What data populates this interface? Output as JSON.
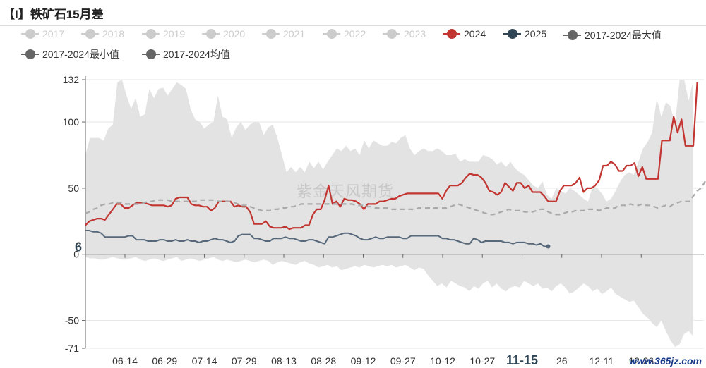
{
  "title": "【I】铁矿石15月差",
  "watermark": "紫金天风期货",
  "corner_mark": "www.365jz.com",
  "chart_data": {
    "type": "line",
    "legend_items": [
      {
        "label": "2017",
        "color": "#cccccc",
        "disabled": true
      },
      {
        "label": "2018",
        "color": "#cccccc",
        "disabled": true
      },
      {
        "label": "2019",
        "color": "#cccccc",
        "disabled": true
      },
      {
        "label": "2020",
        "color": "#cccccc",
        "disabled": true
      },
      {
        "label": "2021",
        "color": "#cccccc",
        "disabled": true
      },
      {
        "label": "2022",
        "color": "#cccccc",
        "disabled": true
      },
      {
        "label": "2023",
        "color": "#cccccc",
        "disabled": true
      },
      {
        "label": "2024",
        "color": "#c23531",
        "disabled": false
      },
      {
        "label": "2025",
        "color": "#2f4554",
        "disabled": false
      },
      {
        "label": "2017-2024最大值",
        "color": "#666666",
        "disabled": false
      },
      {
        "label": "2017-2024最小值",
        "color": "#666666",
        "disabled": false
      },
      {
        "label": "2017-2024均值",
        "color": "#666666",
        "disabled": false
      }
    ],
    "x_ticks": [
      "06-14",
      "06-29",
      "07-14",
      "07-29",
      "08-13",
      "08-28",
      "09-12",
      "09-27",
      "10-12",
      "10-27",
      "11-15",
      "26",
      "12-11",
      "12-26"
    ],
    "highlight_tick": "11-15",
    "y_ticks": [
      132,
      100,
      50,
      0,
      -50,
      -71
    ],
    "ylim": [
      -71,
      132
    ],
    "last_value_label": "6",
    "band_max": [
      75,
      88,
      88,
      88,
      86,
      95,
      98,
      130,
      132,
      120,
      110,
      118,
      104,
      106,
      125,
      118,
      125,
      126,
      120,
      125,
      130,
      128,
      125,
      110,
      102,
      100,
      95,
      98,
      100,
      120,
      104,
      102,
      88,
      96,
      100,
      94,
      98,
      100,
      100,
      90,
      96,
      98,
      88,
      75,
      62,
      66,
      62,
      66,
      62,
      70,
      65,
      70,
      64,
      70,
      75,
      80,
      78,
      82,
      78,
      80,
      75,
      86,
      80,
      86,
      84,
      82,
      82,
      85,
      84,
      88,
      90,
      80,
      75,
      78,
      80,
      78,
      78,
      80,
      78,
      75,
      75,
      76,
      70,
      72,
      70,
      70,
      70,
      75,
      74,
      72,
      68,
      70,
      66,
      70,
      65,
      62,
      60,
      56,
      52,
      50,
      55,
      45,
      42,
      50,
      48,
      46,
      50,
      48,
      45,
      42,
      40,
      52,
      50,
      46,
      40,
      42,
      48,
      55,
      60,
      62,
      60,
      70,
      80,
      85,
      92,
      118,
      104,
      115,
      112,
      98,
      132,
      132,
      116,
      132
    ],
    "band_min": [
      -2,
      -3,
      -3,
      -4,
      -4,
      -3,
      -2,
      -3,
      -4,
      -4,
      -3,
      -2,
      -4,
      -5,
      -4,
      -3,
      -4,
      -5,
      -4,
      -3,
      -2,
      -5,
      -4,
      -3,
      -4,
      -5,
      -4,
      -3,
      -2,
      -4,
      -5,
      -4,
      -5,
      -6,
      -5,
      -4,
      -5,
      -6,
      -5,
      -4,
      -5,
      -8,
      -6,
      -5,
      -6,
      -7,
      -8,
      -6,
      -5,
      -7,
      -8,
      -10,
      -9,
      -8,
      -10,
      -9,
      -12,
      -11,
      -10,
      -9,
      -10,
      -8,
      -9,
      -10,
      -9,
      -8,
      -9,
      -8,
      -10,
      -9,
      -8,
      -10,
      -12,
      -10,
      -11,
      -16,
      -20,
      -24,
      -22,
      -25,
      -20,
      -22,
      -24,
      -25,
      -28,
      -24,
      -26,
      -22,
      -20,
      -25,
      -22,
      -26,
      -28,
      -25,
      -24,
      -25,
      -20,
      -22,
      -24,
      -22,
      -26,
      -25,
      -28,
      -24,
      -22,
      -25,
      -30,
      -28,
      -25,
      -22,
      -24,
      -28,
      -26,
      -30,
      -28,
      -25,
      -30,
      -32,
      -34,
      -36,
      -35,
      -40,
      -45,
      -48,
      -52,
      -55,
      -50,
      -58,
      -65,
      -70,
      -68,
      -60,
      -58,
      -62
    ],
    "series": [
      {
        "name": "2024",
        "color": "#c23531",
        "width": 2.2,
        "dash": "",
        "values": [
          22,
          25,
          26,
          27,
          27,
          26,
          30,
          34,
          38,
          38,
          35,
          35,
          37,
          39,
          39,
          39,
          38,
          37,
          37,
          37,
          37,
          36,
          37,
          42,
          43,
          43,
          43,
          38,
          37,
          37,
          36,
          36,
          33,
          35,
          40,
          40,
          40,
          40,
          36,
          37,
          36,
          36,
          32,
          23,
          23,
          23,
          25,
          21,
          20,
          20,
          20,
          21,
          19,
          20,
          20,
          20,
          22,
          22,
          30,
          34,
          34,
          41,
          52,
          38,
          40,
          36,
          42,
          41,
          41,
          40,
          38,
          34,
          38,
          38,
          38,
          40,
          40,
          41,
          42,
          42,
          44,
          45,
          46,
          46,
          46,
          46,
          46,
          46,
          46,
          46,
          46,
          42,
          48,
          52,
          52,
          52,
          54,
          58,
          61,
          60,
          60,
          58,
          54,
          48,
          47,
          45,
          47,
          54,
          51,
          48,
          54,
          54,
          50,
          52,
          47,
          47,
          47,
          44,
          40,
          40,
          40,
          48,
          52,
          52,
          52,
          54,
          58,
          47,
          50,
          50,
          52,
          56,
          67,
          67,
          70,
          68,
          63,
          63,
          67,
          67,
          69,
          59,
          66,
          57,
          57,
          57,
          57,
          86,
          86,
          86,
          104,
          92,
          102,
          82,
          82,
          82,
          130
        ]
      },
      {
        "name": "2025",
        "color": "#56687a",
        "width": 2,
        "dash": "",
        "values": [
          18,
          18,
          17,
          17,
          16,
          13,
          13,
          13,
          13,
          13,
          13,
          14,
          14,
          11,
          11,
          11,
          10,
          10,
          10,
          11,
          11,
          10,
          10,
          11,
          10,
          10,
          11,
          10,
          10,
          9,
          10,
          10,
          11,
          12,
          11,
          11,
          10,
          9,
          10,
          14,
          15,
          15,
          15,
          12,
          12,
          11,
          10,
          10,
          12,
          12,
          12,
          13,
          12,
          12,
          11,
          10,
          10,
          11,
          11,
          10,
          9,
          8,
          13,
          13,
          14,
          15,
          16,
          16,
          15,
          14,
          12,
          11,
          11,
          12,
          13,
          12,
          12,
          13,
          13,
          13,
          13,
          12,
          12,
          14,
          14,
          14,
          14,
          14,
          14,
          14,
          14,
          12,
          12,
          11,
          11,
          10,
          9,
          8,
          8,
          12,
          11,
          9,
          10,
          10,
          10,
          10,
          10,
          9,
          9,
          8,
          9,
          9,
          9,
          8,
          8,
          7,
          8,
          6,
          6
        ]
      },
      {
        "name": "2017-2024均值",
        "color": "#aaaaaa",
        "width": 2.2,
        "dash": "7,5",
        "values": [
          31,
          32,
          34,
          35,
          37,
          38,
          38,
          39,
          39,
          39,
          38,
          38,
          38,
          38,
          38,
          39,
          40,
          40,
          41,
          41,
          41,
          41,
          40,
          40,
          40,
          40,
          40,
          40,
          40,
          41,
          41,
          41,
          41,
          41,
          40,
          40,
          40,
          40,
          39,
          38,
          37,
          37,
          36,
          35,
          34,
          33,
          33,
          33,
          34,
          34,
          35,
          35,
          36,
          36,
          37,
          38,
          38,
          38,
          38,
          38,
          38,
          38,
          38,
          38,
          38,
          38,
          38,
          38,
          38,
          37,
          37,
          37,
          36,
          36,
          35,
          35,
          35,
          35,
          34,
          34,
          34,
          34,
          34,
          34,
          34,
          35,
          35,
          35,
          35,
          35,
          35,
          35,
          35,
          36,
          37,
          38,
          37,
          36,
          35,
          34,
          33,
          32,
          31,
          30,
          30,
          31,
          32,
          33,
          34,
          33,
          33,
          33,
          32,
          32,
          32,
          33,
          34,
          34,
          32,
          31,
          30,
          30,
          31,
          32,
          32,
          33,
          33,
          33,
          34,
          34,
          34,
          33,
          34,
          35,
          35,
          35,
          37,
          37,
          37,
          38,
          37,
          37,
          38,
          37,
          37,
          36,
          35,
          36,
          37,
          36,
          38,
          39,
          40,
          40,
          40,
          44,
          48,
          50,
          55,
          57
        ]
      }
    ]
  }
}
